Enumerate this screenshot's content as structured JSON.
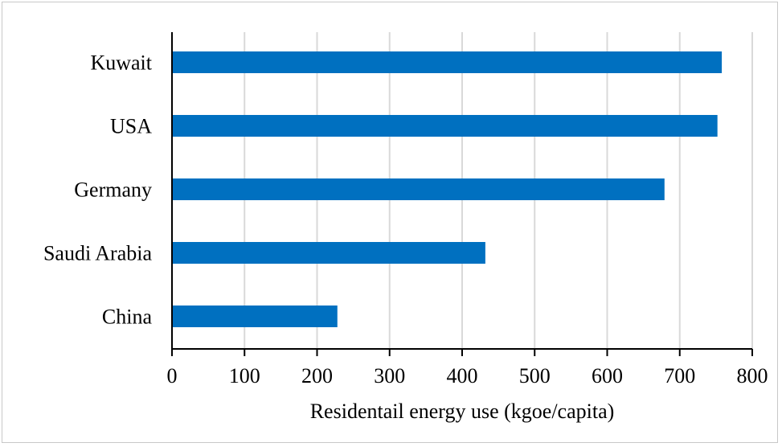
{
  "chart_data": {
    "type": "bar",
    "orientation": "horizontal",
    "categories": [
      "Kuwait",
      "USA",
      "Germany",
      "Saudi Arabia",
      "China"
    ],
    "values": [
      758,
      752,
      679,
      432,
      228
    ],
    "xlabel": "Residentail energy use (kgoe/capita)",
    "ylabel": "",
    "xlim": [
      0,
      800
    ],
    "xticks": [
      0,
      100,
      200,
      300,
      400,
      500,
      600,
      700,
      800
    ],
    "grid": "vertical",
    "bar_color": "#0070C0",
    "grid_color": "#d9d9d9",
    "axis_color": "#000000"
  }
}
